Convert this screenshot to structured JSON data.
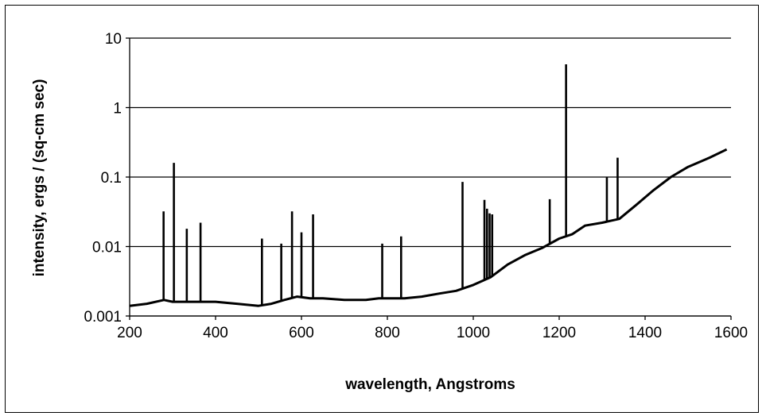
{
  "chart_data": {
    "type": "line",
    "title": "",
    "xlabel": "wavelength, Angstroms",
    "ylabel": "intensity, ergs / (sq-cm sec)",
    "xlim": [
      200,
      1600
    ],
    "ylim": [
      0.001,
      10
    ],
    "yscale": "log",
    "grid": "horizontal",
    "legend": "none",
    "colors": {
      "line": "#000000",
      "grid": "#000000",
      "background": "#ffffff"
    },
    "x_ticks": [
      "200",
      "400",
      "600",
      "800",
      "1000",
      "1200",
      "1400",
      "1600"
    ],
    "y_ticks": [
      "0.001",
      "0.01",
      "0.1",
      "1",
      "10"
    ],
    "series": [
      {
        "x": [
          200,
          240,
          280,
          300,
          340,
          400,
          450,
          500,
          530,
          560,
          590,
          620,
          650,
          700,
          750,
          780,
          800,
          840,
          880,
          920,
          960,
          1000,
          1040,
          1080,
          1120,
          1160,
          1200,
          1230,
          1260,
          1300,
          1340,
          1380,
          1420,
          1460,
          1500,
          1550,
          1590
        ],
        "values": [
          0.0014,
          0.0015,
          0.0017,
          0.0016,
          0.0016,
          0.0016,
          0.0015,
          0.0014,
          0.0015,
          0.0017,
          0.0019,
          0.0018,
          0.0018,
          0.0017,
          0.0017,
          0.0018,
          0.0018,
          0.0018,
          0.0019,
          0.0021,
          0.0023,
          0.0028,
          0.0036,
          0.0055,
          0.0075,
          0.0095,
          0.013,
          0.015,
          0.02,
          0.022,
          0.025,
          0.04,
          0.065,
          0.1,
          0.14,
          0.19,
          0.25
        ]
      }
    ],
    "lines": {
      "x": [
        279,
        303,
        333,
        365,
        508,
        553,
        578,
        600,
        627,
        788,
        832,
        975,
        1026,
        1032,
        1038,
        1044,
        1178,
        1216,
        1311,
        1336
      ],
      "values": [
        0.032,
        0.16,
        0.018,
        0.022,
        0.013,
        0.011,
        0.032,
        0.016,
        0.029,
        0.011,
        0.014,
        0.085,
        0.047,
        0.035,
        0.03,
        0.029,
        0.048,
        4.2,
        0.1,
        0.19
      ]
    }
  }
}
